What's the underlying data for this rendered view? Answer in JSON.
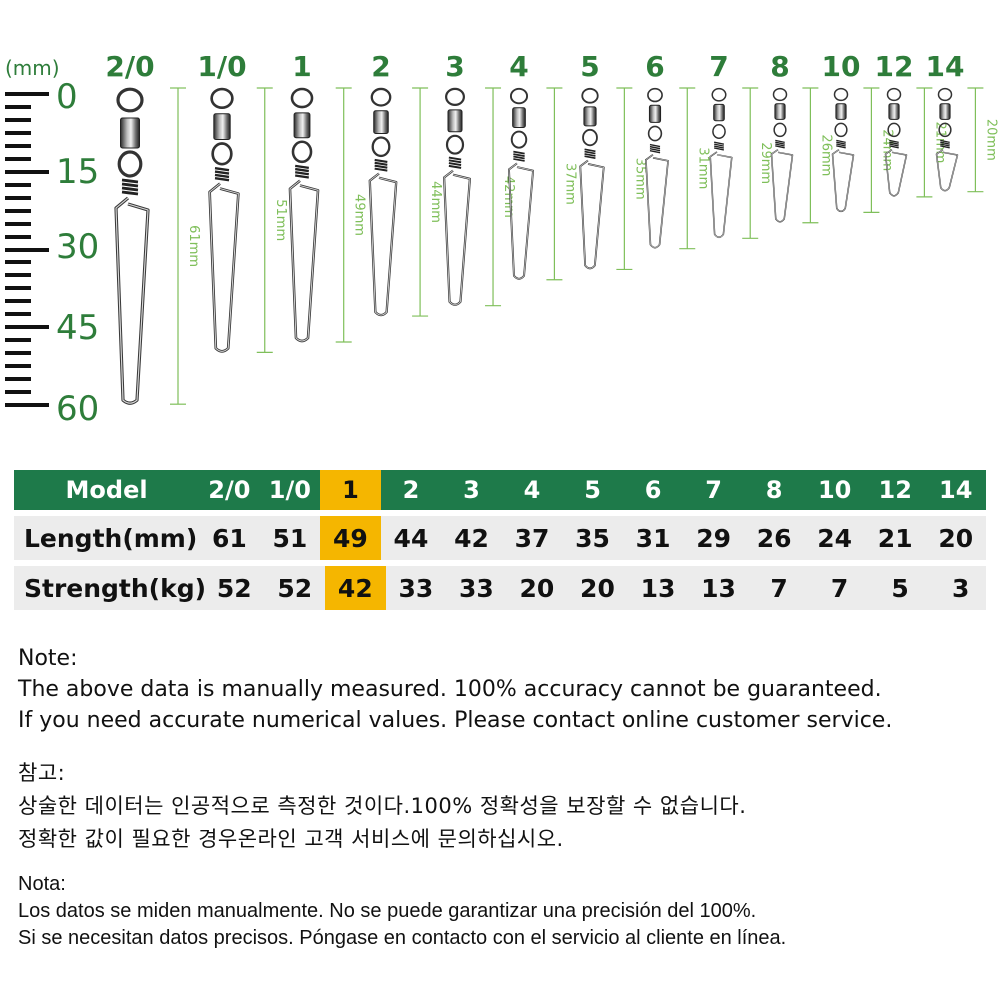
{
  "ruler": {
    "unit": "(mm)",
    "labels": [
      "0",
      "15",
      "30",
      "45",
      "60"
    ]
  },
  "sizes": [
    "2/0",
    "1/0",
    "1",
    "2",
    "3",
    "4",
    "5",
    "6",
    "7",
    "8",
    "10",
    "12",
    "14"
  ],
  "swivels": [
    {
      "size": "2/0",
      "length": 61,
      "dimension_label": "61mm"
    },
    {
      "size": "1/0",
      "length": 51,
      "dimension_label": "51mm"
    },
    {
      "size": "1",
      "length": 49,
      "dimension_label": "49mm"
    },
    {
      "size": "2",
      "length": 44,
      "dimension_label": "44mm"
    },
    {
      "size": "3",
      "length": 42,
      "dimension_label": "42mm"
    },
    {
      "size": "4",
      "length": 37,
      "dimension_label": "37mm"
    },
    {
      "size": "5",
      "length": 35,
      "dimension_label": "35mm"
    },
    {
      "size": "6",
      "length": 31,
      "dimension_label": "31mm"
    },
    {
      "size": "7",
      "length": 29,
      "dimension_label": "29mm"
    },
    {
      "size": "8",
      "length": 26,
      "dimension_label": "26mm"
    },
    {
      "size": "10",
      "length": 24,
      "dimension_label": "24mm"
    },
    {
      "size": "12",
      "length": 21,
      "dimension_label": "21mm"
    },
    {
      "size": "14",
      "length": 20,
      "dimension_label": "20mm"
    }
  ],
  "table": {
    "header_label": "Model",
    "models": [
      "2/0",
      "1/0",
      "1",
      "2",
      "3",
      "4",
      "5",
      "6",
      "7",
      "8",
      "10",
      "12",
      "14"
    ],
    "highlight_model": "1",
    "rows": [
      {
        "label": "Length(mm)",
        "values": [
          "61",
          "51",
          "49",
          "44",
          "42",
          "37",
          "35",
          "31",
          "29",
          "26",
          "24",
          "21",
          "20"
        ]
      },
      {
        "label": "Strength(kg)",
        "values": [
          "52",
          "52",
          "42",
          "33",
          "33",
          "20",
          "20",
          "13",
          "13",
          "7",
          "7",
          "5",
          "3"
        ]
      }
    ]
  },
  "notes": {
    "en": [
      "Note:",
      "The above data is manually measured. 100% accuracy cannot be guaranteed.",
      "If you need accurate numerical values. Please contact online customer service."
    ],
    "ko": [
      "참고:",
      "상술한 데이터는 인공적으로 측정한 것이다.100% 정확성을 보장할 수 없습니다.",
      "정확한 값이 필요한 경우온라인 고객 서비스에 문의하십시오."
    ],
    "es": [
      "Nota:",
      "Los datos se miden manualmente. No se puede garantizar una precisión del 100%.",
      "Si se necesitan datos precisos. Póngase en contacto con el servicio al cliente en línea."
    ]
  },
  "colors": {
    "brand_green": "#1e7a4a",
    "label_green": "#2e7d3a",
    "dimension_green": "#7fbf5a",
    "highlight": "#f5b600",
    "row_bg": "#ececec"
  }
}
